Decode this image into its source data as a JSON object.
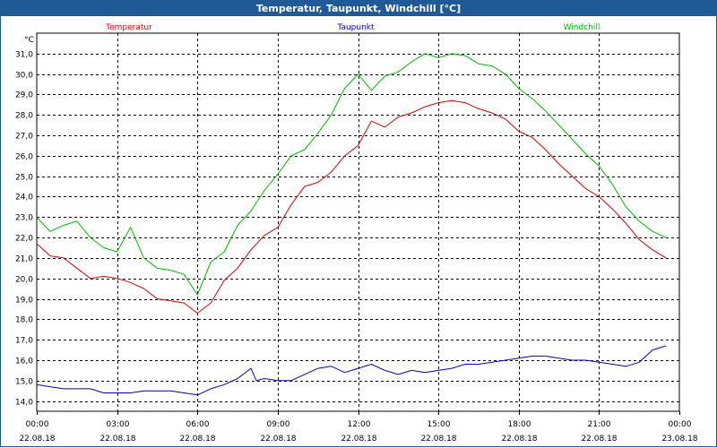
{
  "window": {
    "title": "Temperatur, Taupunkt, Windchill [°C]"
  },
  "chart_data": {
    "type": "line",
    "title": "Temperatur, Taupunkt, Windchill [°C]",
    "ylabel": "°C",
    "ylim": [
      13.5,
      32.0
    ],
    "xlim": [
      0,
      24
    ],
    "grid": true,
    "y_ticks": [
      14.0,
      15.0,
      16.0,
      17.0,
      18.0,
      19.0,
      20.0,
      21.0,
      22.0,
      23.0,
      24.0,
      25.0,
      26.0,
      27.0,
      28.0,
      29.0,
      30.0,
      31.0
    ],
    "y_tick_labels": [
      "14,0",
      "15,0",
      "16,0",
      "17,0",
      "18,0",
      "19,0",
      "20,0",
      "21,0",
      "22,0",
      "23,0",
      "24,0",
      "25,0",
      "26,0",
      "27,0",
      "28,0",
      "29,0",
      "30,0",
      "31,0"
    ],
    "x_ticks": [
      {
        "time": "00:00",
        "date": "22.08.18",
        "hour": 0
      },
      {
        "time": "03:00",
        "date": "22.08.18",
        "hour": 3
      },
      {
        "time": "06:00",
        "date": "22.08.18",
        "hour": 6
      },
      {
        "time": "09:00",
        "date": "22.08.18",
        "hour": 9
      },
      {
        "time": "12:00",
        "date": "22.08.18",
        "hour": 12
      },
      {
        "time": "15:00",
        "date": "22.08.18",
        "hour": 15
      },
      {
        "time": "18:00",
        "date": "22.08.18",
        "hour": 18
      },
      {
        "time": "21:00",
        "date": "22.08.18",
        "hour": 21
      },
      {
        "time": "00:00",
        "date": "23.08.18",
        "hour": 24
      }
    ],
    "series": [
      {
        "name": "Temperatur",
        "color": "#dd0000",
        "x": [
          0,
          0.5,
          1,
          1.5,
          2,
          2.5,
          3,
          3.5,
          4,
          4.5,
          5,
          5.5,
          6,
          6.5,
          7,
          7.5,
          8,
          8.5,
          9,
          9.5,
          10,
          10.5,
          11,
          11.5,
          12,
          12.5,
          13,
          13.5,
          14,
          14.5,
          15,
          15.5,
          16,
          16.5,
          17,
          17.5,
          18,
          18.5,
          19,
          19.5,
          20,
          20.5,
          21,
          21.5,
          22,
          22.5,
          23,
          23.5
        ],
        "values": [
          21.7,
          21.1,
          21.0,
          20.5,
          20.0,
          20.1,
          20.0,
          19.8,
          19.5,
          19.0,
          18.9,
          18.8,
          18.3,
          18.8,
          19.9,
          20.5,
          21.4,
          22.1,
          22.5,
          23.6,
          24.5,
          24.7,
          25.2,
          26.0,
          26.5,
          27.7,
          27.4,
          27.9,
          28.1,
          28.4,
          28.6,
          28.7,
          28.6,
          28.3,
          28.1,
          27.8,
          27.2,
          26.9,
          26.3,
          25.6,
          25.0,
          24.4,
          24.0,
          23.4,
          22.7,
          21.9,
          21.4,
          21.0
        ]
      },
      {
        "name": "Taupunkt",
        "color": "#0000cc",
        "x": [
          0,
          0.5,
          1,
          1.5,
          2,
          2.5,
          3,
          3.5,
          4,
          4.5,
          5,
          5.5,
          6,
          6.5,
          7,
          7.5,
          8,
          8.2,
          8.5,
          9,
          9.5,
          10,
          10.5,
          11,
          11.5,
          12,
          12.5,
          13,
          13.5,
          14,
          14.5,
          15,
          15.5,
          16,
          16.5,
          17,
          17.5,
          18,
          18.5,
          19,
          19.5,
          20,
          20.5,
          21,
          21.5,
          22,
          22.5,
          23,
          23.5
        ],
        "values": [
          14.8,
          14.7,
          14.6,
          14.6,
          14.6,
          14.4,
          14.4,
          14.4,
          14.5,
          14.5,
          14.5,
          14.4,
          14.3,
          14.6,
          14.8,
          15.1,
          15.6,
          15.0,
          15.1,
          15.0,
          15.0,
          15.3,
          15.6,
          15.7,
          15.4,
          15.6,
          15.8,
          15.5,
          15.3,
          15.5,
          15.4,
          15.5,
          15.6,
          15.8,
          15.8,
          15.9,
          16.0,
          16.1,
          16.2,
          16.2,
          16.1,
          16.0,
          16.0,
          15.9,
          15.8,
          15.7,
          15.9,
          16.5,
          16.7
        ]
      },
      {
        "name": "Windchill",
        "color": "#00bb00",
        "x": [
          0,
          0.5,
          1,
          1.5,
          2,
          2.5,
          3,
          3.5,
          4,
          4.5,
          5,
          5.5,
          6,
          6.5,
          7,
          7.5,
          8,
          8.5,
          9,
          9.5,
          10,
          10.5,
          11,
          11.5,
          12,
          12.5,
          13,
          13.5,
          14,
          14.5,
          15,
          15.5,
          16,
          16.5,
          17,
          17.5,
          18,
          18.5,
          19,
          19.5,
          20,
          20.5,
          21,
          21.5,
          22,
          22.5,
          23,
          23.5
        ],
        "values": [
          23.0,
          22.3,
          22.6,
          22.8,
          22.0,
          21.5,
          21.3,
          22.5,
          21.0,
          20.5,
          20.4,
          20.2,
          19.2,
          20.8,
          21.3,
          22.6,
          23.3,
          24.3,
          25.1,
          26.0,
          26.3,
          27.1,
          28.0,
          29.3,
          30.0,
          29.2,
          29.9,
          30.1,
          30.6,
          31.0,
          30.8,
          31.0,
          30.9,
          30.5,
          30.4,
          30.0,
          29.3,
          28.8,
          28.2,
          27.5,
          26.8,
          26.1,
          25.5,
          24.6,
          23.5,
          22.8,
          22.3,
          22.0
        ]
      }
    ]
  }
}
